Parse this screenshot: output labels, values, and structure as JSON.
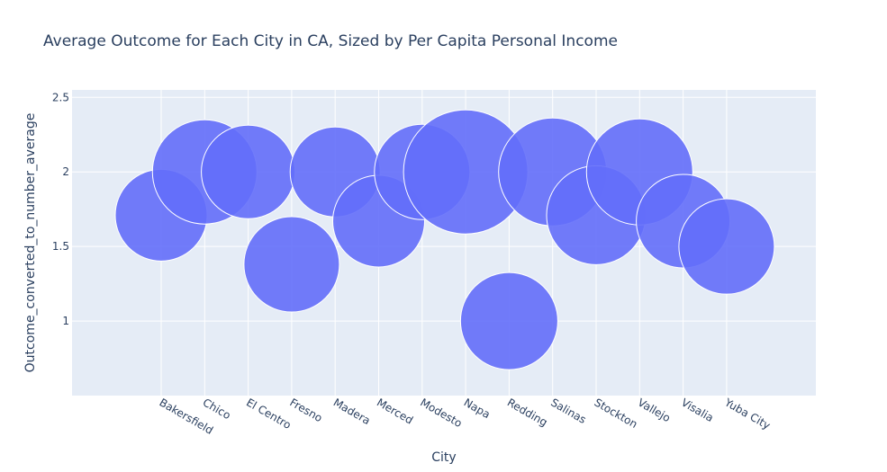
{
  "chart_data": {
    "type": "scatter",
    "title": "Average Outcome for Each City in CA, Sized by Per Capita Personal Income",
    "xlabel": "City",
    "ylabel": "Outcome_converted_to_number_average",
    "ylim": [
      0.5,
      2.55
    ],
    "y_ticks": [
      1,
      1.5,
      2,
      2.5
    ],
    "y_tick_labels": [
      "1",
      "1.5",
      "2",
      "2.5"
    ],
    "grid": true,
    "bubble_color": "#636efa",
    "background_color": "#e5ecf6",
    "categories": [
      "Bakersfield",
      "Chico",
      "El Centro",
      "Fresno",
      "Madera",
      "Merced",
      "Modesto",
      "Napa",
      "Redding",
      "Salinas",
      "Stockton",
      "Vallejo",
      "Visalia",
      "Yuba City"
    ],
    "values": [
      1.71,
      2.0,
      2.0,
      1.38,
      2.0,
      1.67,
      2.0,
      2.0,
      1.0,
      2.0,
      1.71,
      2.0,
      1.67,
      1.5
    ],
    "size_variable": "Per Capita Personal Income",
    "sizes": [
      51,
      58,
      52,
      53,
      50,
      51,
      53,
      69,
      54,
      60,
      55,
      59,
      52,
      53
    ]
  }
}
